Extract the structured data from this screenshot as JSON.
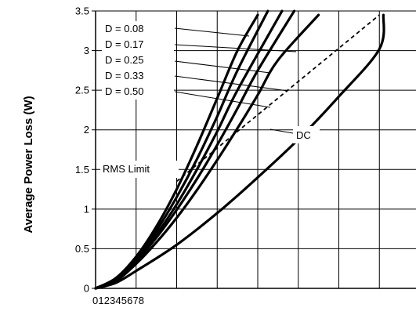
{
  "chart_data": {
    "type": "line",
    "title": "",
    "ylabel": "Average Power Loss (W)",
    "xlabel": "",
    "x_tick_labels": [
      "0",
      "1",
      "2",
      "3",
      "4",
      "5",
      "6",
      "7",
      "8"
    ],
    "y_tick_labels": [
      "0",
      "0.5",
      "1",
      "1.5",
      "2",
      "2.5",
      "3",
      "3.5"
    ],
    "xlim": [
      0,
      8
    ],
    "ylim": [
      0,
      3.5
    ],
    "grid": true,
    "series": [
      {
        "name": "D = 0.08",
        "x": [
          0,
          0.5,
          1,
          1.5,
          2,
          2.5,
          3,
          3.5,
          4.0
        ],
        "y": [
          0,
          0.13,
          0.4,
          0.78,
          1.25,
          1.8,
          2.4,
          3.0,
          3.45
        ]
      },
      {
        "name": "D = 0.17",
        "x": [
          0,
          0.5,
          1,
          1.5,
          2,
          2.5,
          3,
          3.5,
          4.25
        ],
        "y": [
          0,
          0.12,
          0.38,
          0.73,
          1.15,
          1.63,
          2.17,
          2.75,
          3.5
        ]
      },
      {
        "name": "D = 0.25",
        "x": [
          0,
          0.5,
          1,
          1.5,
          2,
          2.5,
          3,
          3.5,
          4.6
        ],
        "y": [
          0,
          0.11,
          0.36,
          0.68,
          1.06,
          1.5,
          1.98,
          2.5,
          3.5
        ]
      },
      {
        "name": "D = 0.33",
        "x": [
          0,
          0.5,
          1,
          1.5,
          2,
          2.5,
          3,
          3.5,
          4,
          4.9
        ],
        "y": [
          0,
          0.1,
          0.34,
          0.64,
          0.99,
          1.38,
          1.81,
          2.27,
          2.75,
          3.5
        ]
      },
      {
        "name": "D = 0.50",
        "x": [
          0,
          0.5,
          1,
          1.5,
          2,
          2.5,
          3,
          3.5,
          4,
          4.5,
          5.5
        ],
        "y": [
          0,
          0.09,
          0.31,
          0.58,
          0.89,
          1.24,
          1.62,
          2.02,
          2.44,
          2.88,
          3.45
        ]
      },
      {
        "name": "DC",
        "x": [
          0,
          0.5,
          1,
          2,
          3,
          4,
          5,
          6,
          7,
          7.1
        ],
        "y": [
          0,
          0.07,
          0.22,
          0.55,
          0.95,
          1.4,
          1.88,
          2.42,
          3.02,
          3.45
        ]
      }
    ],
    "rms_limit": {
      "label": "RMS Limit",
      "x": [
        2.0,
        7.0
      ],
      "y": [
        1.35,
        3.45
      ]
    },
    "labels": {
      "d008": "D = 0.08",
      "d017": "D = 0.17",
      "d025": "D = 0.25",
      "d033": "D = 0.33",
      "d050": "D = 0.50",
      "dc": "DC",
      "rms": "RMS Limit"
    }
  }
}
